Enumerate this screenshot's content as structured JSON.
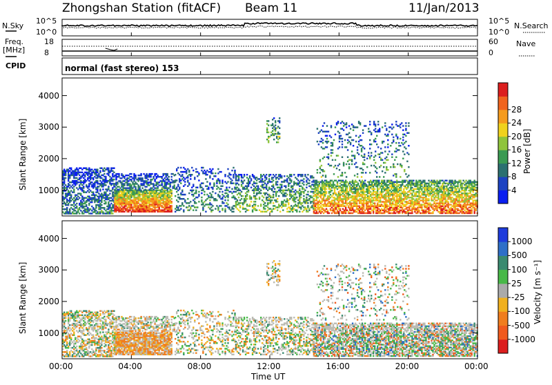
{
  "header": {
    "station": "Zhongshan Station (fitACF)",
    "beam": "Beam 11",
    "date": "11/Jan/2013"
  },
  "top_panels": {
    "nsky_label": "N.Sky",
    "nsky_ticks": [
      "10^5",
      "10^0"
    ],
    "nsearch_label": "N.Search",
    "nsearch_ticks": [
      "10^5",
      "10^0"
    ],
    "freq_label": "Freq.",
    "freq_unit": "[MHz]",
    "freq_ticks": [
      "18",
      "8"
    ],
    "nave_label": "Nave",
    "nave_ticks": [
      "60",
      "0"
    ],
    "cpid_label": "CPID",
    "cpid_text": "normal (fast stereo) 153"
  },
  "chart_data": [
    {
      "type": "heatmap",
      "name": "power",
      "xlabel": "Time UT",
      "ylabel": "Slant Range [km]",
      "x_ticks": [
        "00:00",
        "04:00",
        "08:00",
        "12:00",
        "16:00",
        "20:00",
        "00:00"
      ],
      "xlim_hours": [
        0,
        24
      ],
      "y_ticks": [
        1000,
        2000,
        3000,
        4000
      ],
      "ylim": [
        180,
        4560
      ],
      "colorbar_label": "Power [dB]",
      "colorbar_ticks": [
        "4",
        "8",
        "12",
        "16",
        "20",
        "24",
        "28"
      ],
      "colorbar_colors": [
        "#0a1ef0",
        "#1d43c2",
        "#2b7070",
        "#3a9a52",
        "#8fc43c",
        "#f0d21e",
        "#f59b1e",
        "#f0641e",
        "#dc1e1e"
      ],
      "range_gate_km": 45,
      "scatter_regions": [
        {
          "t0": 0.0,
          "t1": 3.0,
          "r0": 240,
          "r1": 1700,
          "density": 0.55,
          "peak": 0.3
        },
        {
          "t0": 3.0,
          "t1": 6.3,
          "r0": 300,
          "r1": 1000,
          "density": 0.9,
          "peak": 0.95
        },
        {
          "t0": 3.0,
          "t1": 6.5,
          "r0": 1000,
          "r1": 1500,
          "density": 0.5,
          "peak": 0.3
        },
        {
          "t0": 6.5,
          "t1": 10.0,
          "r0": 300,
          "r1": 1700,
          "density": 0.25,
          "peak": 0.35
        },
        {
          "t0": 10.0,
          "t1": 14.5,
          "r0": 300,
          "r1": 1500,
          "density": 0.4,
          "peak": 0.5
        },
        {
          "t0": 11.8,
          "t1": 12.6,
          "r0": 2500,
          "r1": 3300,
          "density": 0.3,
          "peak": 0.5
        },
        {
          "t0": 14.5,
          "t1": 24.0,
          "r0": 250,
          "r1": 1300,
          "density": 0.7,
          "peak": 0.85
        },
        {
          "t0": 14.7,
          "t1": 20.0,
          "r0": 1400,
          "r1": 3200,
          "density": 0.15,
          "peak": 0.4
        }
      ]
    },
    {
      "type": "heatmap",
      "name": "velocity",
      "xlabel": "Time UT",
      "ylabel": "Slant Range [km]",
      "x_ticks": [
        "00:00",
        "04:00",
        "08:00",
        "12:00",
        "16:00",
        "20:00",
        "00:00"
      ],
      "xlim_hours": [
        0,
        24
      ],
      "y_ticks": [
        1000,
        2000,
        3000,
        4000
      ],
      "ylim": [
        180,
        4560
      ],
      "colorbar_label": "Velocity [m s⁻¹]",
      "colorbar_ticks": [
        "1000",
        "500",
        "100",
        "25",
        "-25",
        "-100",
        "-500",
        "-1000"
      ],
      "colorbar_colors": [
        "#1e3cdc",
        "#2e6fc8",
        "#3a8a70",
        "#48b848",
        "#aaaaaa",
        "#f0b01e",
        "#f07d1e",
        "#f05a1e",
        "#dc1e1e"
      ],
      "ground_scatter_color": "#bcbcb4",
      "range_gate_km": 45
    }
  ]
}
